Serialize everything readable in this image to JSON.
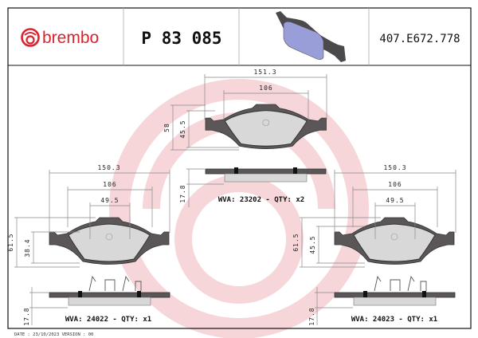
{
  "header": {
    "brand": "brembo",
    "part_number": "P 83 085",
    "reference": "407.E672.778"
  },
  "colors": {
    "brand_red": "#d9232e",
    "watermark": "#f6d0d4",
    "backing": "#5b5758",
    "friction": "#d8d8d8",
    "product_image": "#9a9ed8"
  },
  "views": {
    "top": {
      "width": "151.3",
      "inner": "106",
      "height": "58",
      "friction_height": "45.5",
      "thickness": "17.8",
      "label": "WVA: 23202 - QTY: x2"
    },
    "left": {
      "width": "150.3",
      "inner": "106",
      "center": "49.5",
      "height": "61.5",
      "friction_height": "38.4",
      "thickness": "17.8",
      "label": "WVA: 24022 - QTY: x1"
    },
    "right": {
      "width": "150.3",
      "inner": "106",
      "center": "49.5",
      "height": "61.5",
      "friction_height": "45.5",
      "thickness": "17.8",
      "label": "WVA: 24023 - QTY: x1"
    }
  },
  "footer": {
    "date_version": "DATE : 23/10/2023 VERSION : 00"
  }
}
